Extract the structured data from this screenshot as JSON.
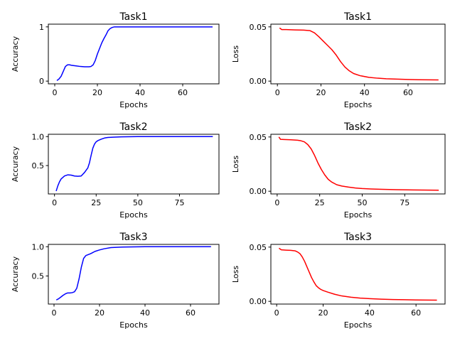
{
  "chart_data": [
    {
      "type": "line",
      "title": "Task1",
      "xlabel": "Epochs",
      "ylabel": "Accuracy",
      "xlim": [
        -3,
        77
      ],
      "ylim": [
        -0.05,
        1.05
      ],
      "xticks": [
        0,
        20,
        40,
        60
      ],
      "yticks": [
        0,
        1
      ],
      "xtick_labels": [
        "0",
        "20",
        "40",
        "60"
      ],
      "ytick_labels": [
        "0",
        "1"
      ],
      "color": "#0000ff",
      "x": [
        1,
        2,
        3,
        4,
        5,
        6,
        7,
        8,
        10,
        12,
        14,
        16,
        17,
        18,
        19,
        20,
        21,
        22,
        23,
        24,
        25,
        26,
        27,
        28,
        30,
        35,
        40,
        50,
        60,
        70,
        74
      ],
      "y": [
        0.01,
        0.04,
        0.09,
        0.18,
        0.27,
        0.3,
        0.3,
        0.29,
        0.28,
        0.27,
        0.265,
        0.265,
        0.27,
        0.3,
        0.38,
        0.5,
        0.6,
        0.7,
        0.78,
        0.85,
        0.93,
        0.97,
        0.99,
        1.0,
        1.0,
        1.0,
        1.0,
        1.0,
        1.0,
        1.0,
        1.0
      ]
    },
    {
      "type": "line",
      "title": "Task1",
      "xlabel": "Epochs",
      "ylabel": "Loss",
      "xlim": [
        -3,
        77
      ],
      "ylim": [
        -0.0025,
        0.0525
      ],
      "xticks": [
        0,
        20,
        40,
        60
      ],
      "yticks": [
        0,
        0.05
      ],
      "xtick_labels": [
        "0",
        "20",
        "40",
        "60"
      ],
      "ytick_labels": [
        "0.00",
        "0.05"
      ],
      "color": "#ff0000",
      "x": [
        1,
        2,
        4,
        8,
        12,
        15,
        17,
        19,
        21,
        23,
        25,
        27,
        29,
        31,
        33,
        35,
        38,
        42,
        46,
        50,
        55,
        60,
        65,
        70,
        74
      ],
      "y": [
        0.049,
        0.0475,
        0.0475,
        0.0472,
        0.047,
        0.0465,
        0.0445,
        0.041,
        0.037,
        0.033,
        0.029,
        0.024,
        0.018,
        0.013,
        0.0095,
        0.007,
        0.005,
        0.0035,
        0.0027,
        0.0022,
        0.0018,
        0.0015,
        0.0013,
        0.0012,
        0.0011
      ]
    },
    {
      "type": "line",
      "title": "Task2",
      "xlabel": "Epochs",
      "ylabel": "Accuracy",
      "xlim": [
        -3.7,
        98.7
      ],
      "ylim": [
        0.01,
        1.04
      ],
      "xticks": [
        0,
        25,
        50,
        75
      ],
      "yticks": [
        0.5,
        1.0
      ],
      "xtick_labels": [
        "0",
        "25",
        "50",
        "75"
      ],
      "ytick_labels": [
        "0.5",
        "1.0"
      ],
      "color": "#0000ff",
      "x": [
        1,
        2,
        3,
        4,
        6,
        8,
        10,
        12,
        14,
        16,
        18,
        20,
        21,
        22,
        23,
        24,
        25,
        26,
        28,
        30,
        32,
        35,
        40,
        50,
        60,
        70,
        80,
        95
      ],
      "y": [
        0.06,
        0.15,
        0.22,
        0.27,
        0.32,
        0.34,
        0.335,
        0.32,
        0.315,
        0.32,
        0.38,
        0.46,
        0.55,
        0.68,
        0.8,
        0.87,
        0.91,
        0.93,
        0.955,
        0.975,
        0.985,
        0.99,
        0.995,
        1.0,
        1.0,
        1.0,
        1.0,
        1.0
      ]
    },
    {
      "type": "line",
      "title": "Task2",
      "xlabel": "Epochs",
      "ylabel": "Loss",
      "xlim": [
        -3.7,
        98.7
      ],
      "ylim": [
        -0.0025,
        0.0525
      ],
      "xticks": [
        0,
        25,
        50,
        75
      ],
      "yticks": [
        0,
        0.05
      ],
      "xtick_labels": [
        "0",
        "25",
        "50",
        "75"
      ],
      "ytick_labels": [
        "0.00",
        "0.05"
      ],
      "color": "#ff0000",
      "x": [
        1,
        2,
        4,
        8,
        12,
        14,
        16,
        18,
        20,
        22,
        24,
        26,
        28,
        30,
        32,
        35,
        38,
        42,
        46,
        50,
        55,
        60,
        70,
        80,
        95
      ],
      "y": [
        0.05,
        0.0478,
        0.0477,
        0.0474,
        0.047,
        0.0465,
        0.0455,
        0.043,
        0.039,
        0.033,
        0.026,
        0.02,
        0.015,
        0.011,
        0.0085,
        0.006,
        0.0048,
        0.0038,
        0.003,
        0.0025,
        0.0021,
        0.0018,
        0.0014,
        0.0012,
        0.0009
      ]
    },
    {
      "type": "line",
      "title": "Task3",
      "xlabel": "Epochs",
      "ylabel": "Accuracy",
      "xlim": [
        -2.5,
        72.5
      ],
      "ylim": [
        0.02,
        1.04
      ],
      "xticks": [
        0,
        20,
        40,
        60
      ],
      "yticks": [
        0.5,
        1.0
      ],
      "xtick_labels": [
        "0",
        "20",
        "40",
        "60"
      ],
      "ytick_labels": [
        "0.5",
        "1.0"
      ],
      "color": "#0000ff",
      "x": [
        1,
        2,
        3,
        4,
        5,
        6,
        7,
        8,
        9,
        10,
        11,
        12,
        13,
        14,
        15,
        16,
        17,
        18,
        20,
        22,
        25,
        30,
        40,
        50,
        60,
        69
      ],
      "y": [
        0.09,
        0.11,
        0.14,
        0.17,
        0.195,
        0.21,
        0.21,
        0.215,
        0.23,
        0.29,
        0.45,
        0.65,
        0.8,
        0.85,
        0.865,
        0.88,
        0.9,
        0.92,
        0.945,
        0.965,
        0.985,
        0.995,
        1.0,
        1.0,
        1.0,
        1.0
      ]
    },
    {
      "type": "line",
      "title": "Task3",
      "xlabel": "Epochs",
      "ylabel": "Loss",
      "xlim": [
        -2.5,
        72.5
      ],
      "ylim": [
        -0.0025,
        0.0525
      ],
      "xticks": [
        0,
        20,
        40,
        60
      ],
      "yticks": [
        0,
        0.05
      ],
      "xtick_labels": [
        "0",
        "20",
        "40",
        "60"
      ],
      "ytick_labels": [
        "0.00",
        "0.05"
      ],
      "color": "#ff0000",
      "x": [
        1,
        2,
        4,
        6,
        8,
        9,
        10,
        11,
        12,
        13,
        14,
        15,
        16,
        17,
        18,
        19,
        20,
        22,
        25,
        28,
        32,
        36,
        40,
        45,
        50,
        55,
        60,
        69
      ],
      "y": [
        0.049,
        0.0475,
        0.0472,
        0.047,
        0.0465,
        0.0455,
        0.044,
        0.041,
        0.037,
        0.032,
        0.027,
        0.022,
        0.018,
        0.0145,
        0.0125,
        0.011,
        0.01,
        0.0085,
        0.0065,
        0.005,
        0.0038,
        0.003,
        0.0025,
        0.002,
        0.0017,
        0.0015,
        0.0013,
        0.0011
      ]
    }
  ]
}
